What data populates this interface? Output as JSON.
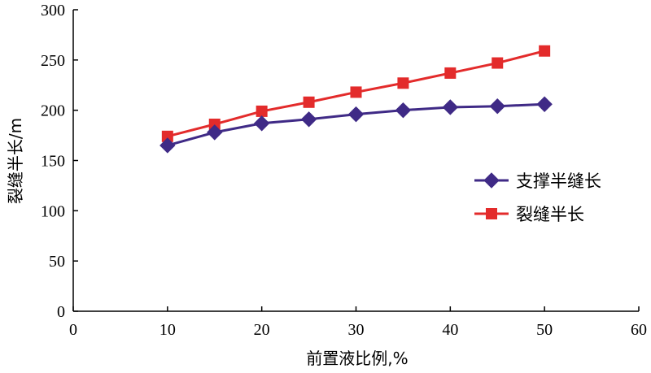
{
  "chart_data": {
    "type": "line",
    "xlabel": "前置液比例,%",
    "ylabel": "裂缝半长/m",
    "xlim": [
      0,
      60
    ],
    "ylim": [
      0,
      300
    ],
    "xticks": [
      0,
      10,
      20,
      30,
      40,
      50,
      60
    ],
    "yticks": [
      0,
      50,
      100,
      150,
      200,
      250,
      300
    ],
    "grid": false,
    "legend_position": "right",
    "x": [
      10,
      15,
      20,
      25,
      30,
      35,
      40,
      45,
      50
    ],
    "series": [
      {
        "name": "支撑半缝长",
        "color": "#3f2a86",
        "marker": "diamond",
        "values": [
          165,
          178,
          187,
          191,
          196,
          200,
          203,
          204,
          206
        ]
      },
      {
        "name": "裂缝半长",
        "color": "#e32b2b",
        "marker": "square",
        "values": [
          174,
          186,
          199,
          208,
          218,
          227,
          237,
          247,
          259
        ]
      }
    ]
  }
}
